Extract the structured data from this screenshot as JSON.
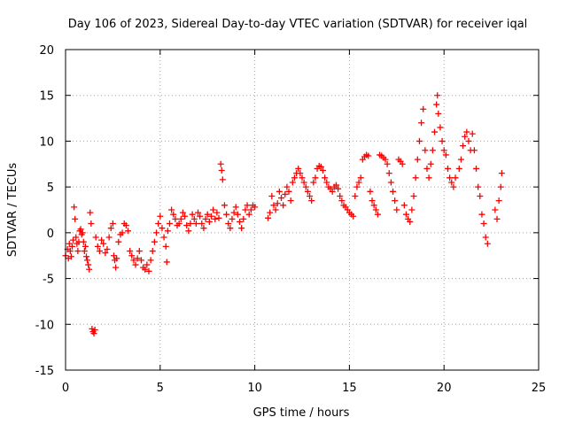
{
  "chart_data": {
    "type": "scatter",
    "title": "Day 106 of 2023, Sidereal Day-to-day VTEC variation (SDTVAR) for receiver iqal",
    "xlabel": "GPS time / hours",
    "ylabel": "SDTVAR / TECUs",
    "xlim": [
      0,
      25
    ],
    "ylim": [
      -15,
      20
    ],
    "xticks": [
      0,
      5,
      10,
      15,
      20,
      25
    ],
    "xtick_labels": [
      "0",
      "5",
      "10",
      "15",
      "20",
      "25"
    ],
    "yticks": [
      -15,
      -10,
      -5,
      0,
      5,
      10,
      15,
      20
    ],
    "ytick_labels": [
      "-15",
      "-10",
      "-5",
      "0",
      "5",
      "10",
      "15",
      "20"
    ],
    "grid": true,
    "marker": "+",
    "color": "#ff0000",
    "series": [
      {
        "name": "SDTVAR",
        "points": [
          [
            0.0,
            -2.5
          ],
          [
            0.1,
            -1.8
          ],
          [
            0.15,
            -2.8
          ],
          [
            0.2,
            -1.2
          ],
          [
            0.25,
            -2.0
          ],
          [
            0.3,
            -2.6
          ],
          [
            0.35,
            -1.5
          ],
          [
            0.4,
            -0.8
          ],
          [
            0.45,
            2.8
          ],
          [
            0.5,
            1.5
          ],
          [
            0.55,
            -0.5
          ],
          [
            0.6,
            -1.2
          ],
          [
            0.65,
            -2.0
          ],
          [
            0.7,
            -1.0
          ],
          [
            0.75,
            0.2
          ],
          [
            0.8,
            0.4
          ],
          [
            0.85,
            -0.2
          ],
          [
            0.9,
            0.0
          ],
          [
            0.95,
            -1.0
          ],
          [
            1.0,
            -2.0
          ],
          [
            1.05,
            -1.5
          ],
          [
            1.1,
            -2.6
          ],
          [
            1.15,
            -3.0
          ],
          [
            1.2,
            -3.5
          ],
          [
            1.25,
            -4.0
          ],
          [
            1.3,
            2.2
          ],
          [
            1.35,
            1.0
          ],
          [
            1.4,
            -10.5
          ],
          [
            1.45,
            -10.8
          ],
          [
            1.5,
            -11.0
          ],
          [
            1.55,
            -10.6
          ],
          [
            1.6,
            -0.5
          ],
          [
            1.7,
            -1.5
          ],
          [
            1.8,
            -2.0
          ],
          [
            1.9,
            -0.8
          ],
          [
            2.0,
            -1.2
          ],
          [
            2.1,
            -2.2
          ],
          [
            2.2,
            -1.8
          ],
          [
            2.3,
            -0.5
          ],
          [
            2.4,
            0.5
          ],
          [
            2.5,
            1.0
          ],
          [
            2.55,
            -2.5
          ],
          [
            2.6,
            -3.0
          ],
          [
            2.65,
            -3.8
          ],
          [
            2.7,
            -2.8
          ],
          [
            2.8,
            -1.0
          ],
          [
            2.9,
            -0.2
          ],
          [
            3.0,
            0.0
          ],
          [
            3.1,
            1.0
          ],
          [
            3.2,
            0.8
          ],
          [
            3.3,
            0.2
          ],
          [
            3.4,
            -2.0
          ],
          [
            3.5,
            -2.5
          ],
          [
            3.6,
            -3.0
          ],
          [
            3.7,
            -3.5
          ],
          [
            3.8,
            -2.8
          ],
          [
            3.9,
            -2.0
          ],
          [
            4.0,
            -3.0
          ],
          [
            4.1,
            -3.8
          ],
          [
            4.2,
            -4.0
          ],
          [
            4.3,
            -3.5
          ],
          [
            4.4,
            -4.2
          ],
          [
            4.5,
            -3.0
          ],
          [
            4.6,
            -2.0
          ],
          [
            4.7,
            -1.0
          ],
          [
            4.8,
            0.0
          ],
          [
            4.9,
            1.0
          ],
          [
            5.0,
            1.8
          ],
          [
            5.1,
            0.5
          ],
          [
            5.2,
            -0.5
          ],
          [
            5.3,
            -1.5
          ],
          [
            5.35,
            -3.2
          ],
          [
            5.4,
            0.2
          ],
          [
            5.5,
            1.0
          ],
          [
            5.6,
            2.5
          ],
          [
            5.7,
            2.0
          ],
          [
            5.8,
            1.5
          ],
          [
            5.9,
            0.8
          ],
          [
            6.0,
            1.0
          ],
          [
            6.1,
            1.5
          ],
          [
            6.2,
            2.2
          ],
          [
            6.3,
            1.8
          ],
          [
            6.4,
            0.8
          ],
          [
            6.5,
            0.2
          ],
          [
            6.6,
            1.0
          ],
          [
            6.7,
            2.0
          ],
          [
            6.8,
            1.5
          ],
          [
            6.9,
            1.0
          ],
          [
            7.0,
            2.2
          ],
          [
            7.1,
            1.8
          ],
          [
            7.2,
            1.0
          ],
          [
            7.3,
            0.5
          ],
          [
            7.4,
            1.5
          ],
          [
            7.5,
            2.0
          ],
          [
            7.6,
            1.2
          ],
          [
            7.7,
            1.8
          ],
          [
            7.8,
            2.5
          ],
          [
            7.9,
            1.5
          ],
          [
            8.0,
            2.2
          ],
          [
            8.1,
            1.6
          ],
          [
            8.2,
            7.5
          ],
          [
            8.25,
            6.8
          ],
          [
            8.3,
            5.8
          ],
          [
            8.4,
            3.0
          ],
          [
            8.5,
            2.0
          ],
          [
            8.6,
            1.0
          ],
          [
            8.7,
            0.5
          ],
          [
            8.8,
            1.5
          ],
          [
            8.9,
            2.2
          ],
          [
            9.0,
            2.8
          ],
          [
            9.1,
            2.0
          ],
          [
            9.2,
            1.2
          ],
          [
            9.3,
            0.5
          ],
          [
            9.4,
            1.5
          ],
          [
            9.5,
            2.5
          ],
          [
            9.6,
            3.0
          ],
          [
            9.7,
            2.0
          ],
          [
            9.8,
            2.5
          ],
          [
            9.9,
            3.0
          ],
          [
            10.0,
            2.8
          ],
          [
            10.7,
            1.6
          ],
          [
            10.8,
            2.2
          ],
          [
            10.9,
            4.0
          ],
          [
            11.0,
            3.0
          ],
          [
            11.1,
            2.5
          ],
          [
            11.2,
            3.2
          ],
          [
            11.3,
            4.5
          ],
          [
            11.4,
            3.8
          ],
          [
            11.5,
            3.0
          ],
          [
            11.6,
            4.2
          ],
          [
            11.7,
            5.0
          ],
          [
            11.8,
            4.5
          ],
          [
            11.9,
            3.5
          ],
          [
            12.0,
            5.5
          ],
          [
            12.1,
            6.0
          ],
          [
            12.2,
            6.5
          ],
          [
            12.3,
            7.0
          ],
          [
            12.4,
            6.5
          ],
          [
            12.5,
            6.0
          ],
          [
            12.6,
            5.5
          ],
          [
            12.7,
            5.0
          ],
          [
            12.8,
            4.5
          ],
          [
            12.9,
            4.0
          ],
          [
            13.0,
            3.5
          ],
          [
            13.1,
            5.5
          ],
          [
            13.2,
            6.0
          ],
          [
            13.3,
            7.0
          ],
          [
            13.4,
            7.3
          ],
          [
            13.5,
            7.2
          ],
          [
            13.6,
            6.8
          ],
          [
            13.7,
            6.0
          ],
          [
            13.8,
            5.5
          ],
          [
            13.9,
            5.0
          ],
          [
            14.0,
            4.8
          ],
          [
            14.1,
            4.5
          ],
          [
            14.2,
            5.0
          ],
          [
            14.3,
            5.2
          ],
          [
            14.4,
            4.8
          ],
          [
            14.5,
            4.0
          ],
          [
            14.6,
            3.5
          ],
          [
            14.7,
            3.0
          ],
          [
            14.8,
            2.8
          ],
          [
            14.9,
            2.5
          ],
          [
            15.0,
            2.2
          ],
          [
            15.1,
            2.0
          ],
          [
            15.2,
            1.8
          ],
          [
            15.3,
            4.0
          ],
          [
            15.4,
            5.0
          ],
          [
            15.5,
            5.5
          ],
          [
            15.6,
            6.0
          ],
          [
            15.7,
            8.0
          ],
          [
            15.8,
            8.3
          ],
          [
            15.9,
            8.5
          ],
          [
            16.0,
            8.4
          ],
          [
            16.1,
            4.5
          ],
          [
            16.2,
            3.5
          ],
          [
            16.3,
            3.0
          ],
          [
            16.4,
            2.5
          ],
          [
            16.5,
            2.0
          ],
          [
            16.6,
            8.5
          ],
          [
            16.7,
            8.4
          ],
          [
            16.8,
            8.2
          ],
          [
            16.9,
            8.0
          ],
          [
            17.0,
            7.5
          ],
          [
            17.1,
            6.5
          ],
          [
            17.2,
            5.5
          ],
          [
            17.3,
            4.5
          ],
          [
            17.4,
            3.5
          ],
          [
            17.5,
            2.5
          ],
          [
            17.6,
            8.0
          ],
          [
            17.7,
            7.8
          ],
          [
            17.8,
            7.5
          ],
          [
            17.9,
            3.0
          ],
          [
            18.0,
            2.0
          ],
          [
            18.1,
            1.5
          ],
          [
            18.2,
            1.2
          ],
          [
            18.3,
            2.5
          ],
          [
            18.4,
            4.0
          ],
          [
            18.5,
            6.0
          ],
          [
            18.6,
            8.0
          ],
          [
            18.7,
            10.0
          ],
          [
            18.8,
            12.0
          ],
          [
            18.9,
            13.5
          ],
          [
            19.0,
            9.0
          ],
          [
            19.1,
            7.0
          ],
          [
            19.2,
            6.0
          ],
          [
            19.3,
            7.5
          ],
          [
            19.4,
            9.0
          ],
          [
            19.5,
            11.0
          ],
          [
            19.6,
            14.0
          ],
          [
            19.65,
            15.0
          ],
          [
            19.7,
            13.0
          ],
          [
            19.8,
            11.5
          ],
          [
            19.9,
            10.0
          ],
          [
            20.0,
            9.0
          ],
          [
            20.1,
            8.5
          ],
          [
            20.2,
            7.0
          ],
          [
            20.3,
            6.0
          ],
          [
            20.4,
            5.5
          ],
          [
            20.5,
            5.0
          ],
          [
            20.6,
            6.0
          ],
          [
            20.8,
            7.0
          ],
          [
            20.9,
            8.0
          ],
          [
            21.0,
            9.5
          ],
          [
            21.1,
            10.5
          ],
          [
            21.2,
            11.0
          ],
          [
            21.3,
            10.0
          ],
          [
            21.4,
            9.0
          ],
          [
            21.5,
            10.8
          ],
          [
            21.6,
            9.0
          ],
          [
            21.7,
            7.0
          ],
          [
            21.8,
            5.0
          ],
          [
            21.9,
            4.0
          ],
          [
            22.0,
            2.0
          ],
          [
            22.1,
            1.0
          ],
          [
            22.2,
            -0.5
          ],
          [
            22.3,
            -1.2
          ],
          [
            22.7,
            2.5
          ],
          [
            22.8,
            1.5
          ],
          [
            22.9,
            3.5
          ],
          [
            23.0,
            5.0
          ],
          [
            23.05,
            6.5
          ]
        ]
      }
    ]
  }
}
